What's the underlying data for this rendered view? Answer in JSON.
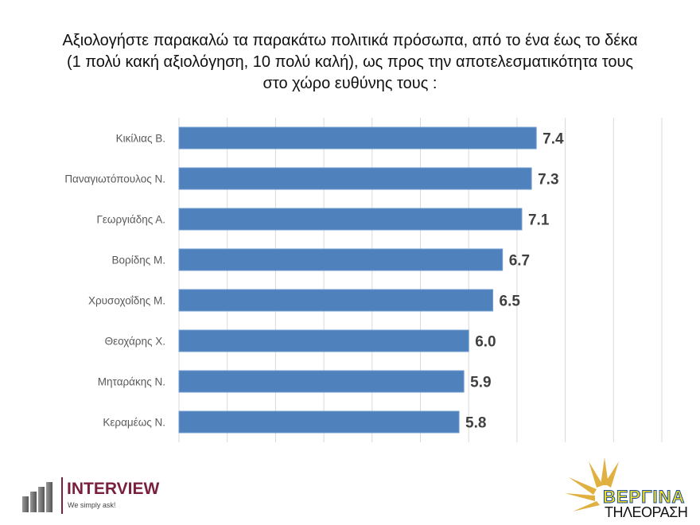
{
  "chart_data": {
    "type": "bar",
    "orientation": "horizontal",
    "title_lines": [
      "Αξιολογήστε παρακαλώ τα παρακάτω πολιτικά πρόσωπα, από το ένα έως το δέκα",
      "(1 πολύ κακή αξιολόγηση, 10 πολύ καλή), ως προς την αποτελεσματικότητα τους",
      "στο χώρο ευθύνης τους :"
    ],
    "categories": [
      "Κικίλιας Β.",
      "Παναγιωτόπουλος Ν.",
      "Γεωργιάδης Α.",
      "Βορίδης Μ.",
      "Χρυσοχοΐδης Μ.",
      "Θεοχάρης Χ.",
      "Μηταράκης Ν.",
      "Κεραμέως Ν."
    ],
    "values": [
      7.4,
      7.3,
      7.1,
      6.7,
      6.5,
      6.0,
      5.9,
      5.8
    ],
    "value_labels": [
      "7.4",
      "7.3",
      "7.1",
      "6.7",
      "6.5",
      "6.0",
      "5.9",
      "5.8"
    ],
    "xlim": [
      0,
      10
    ],
    "grid": true,
    "bar_color": "#4f81bd"
  },
  "logos": {
    "interview": "INTERVIEW",
    "interview_tagline": "We simply ask!",
    "vergina": "ΒΕΡΓΙΝΑ",
    "vergina_sub": "ΤΗΛΕΟΡΑΣΗ"
  }
}
